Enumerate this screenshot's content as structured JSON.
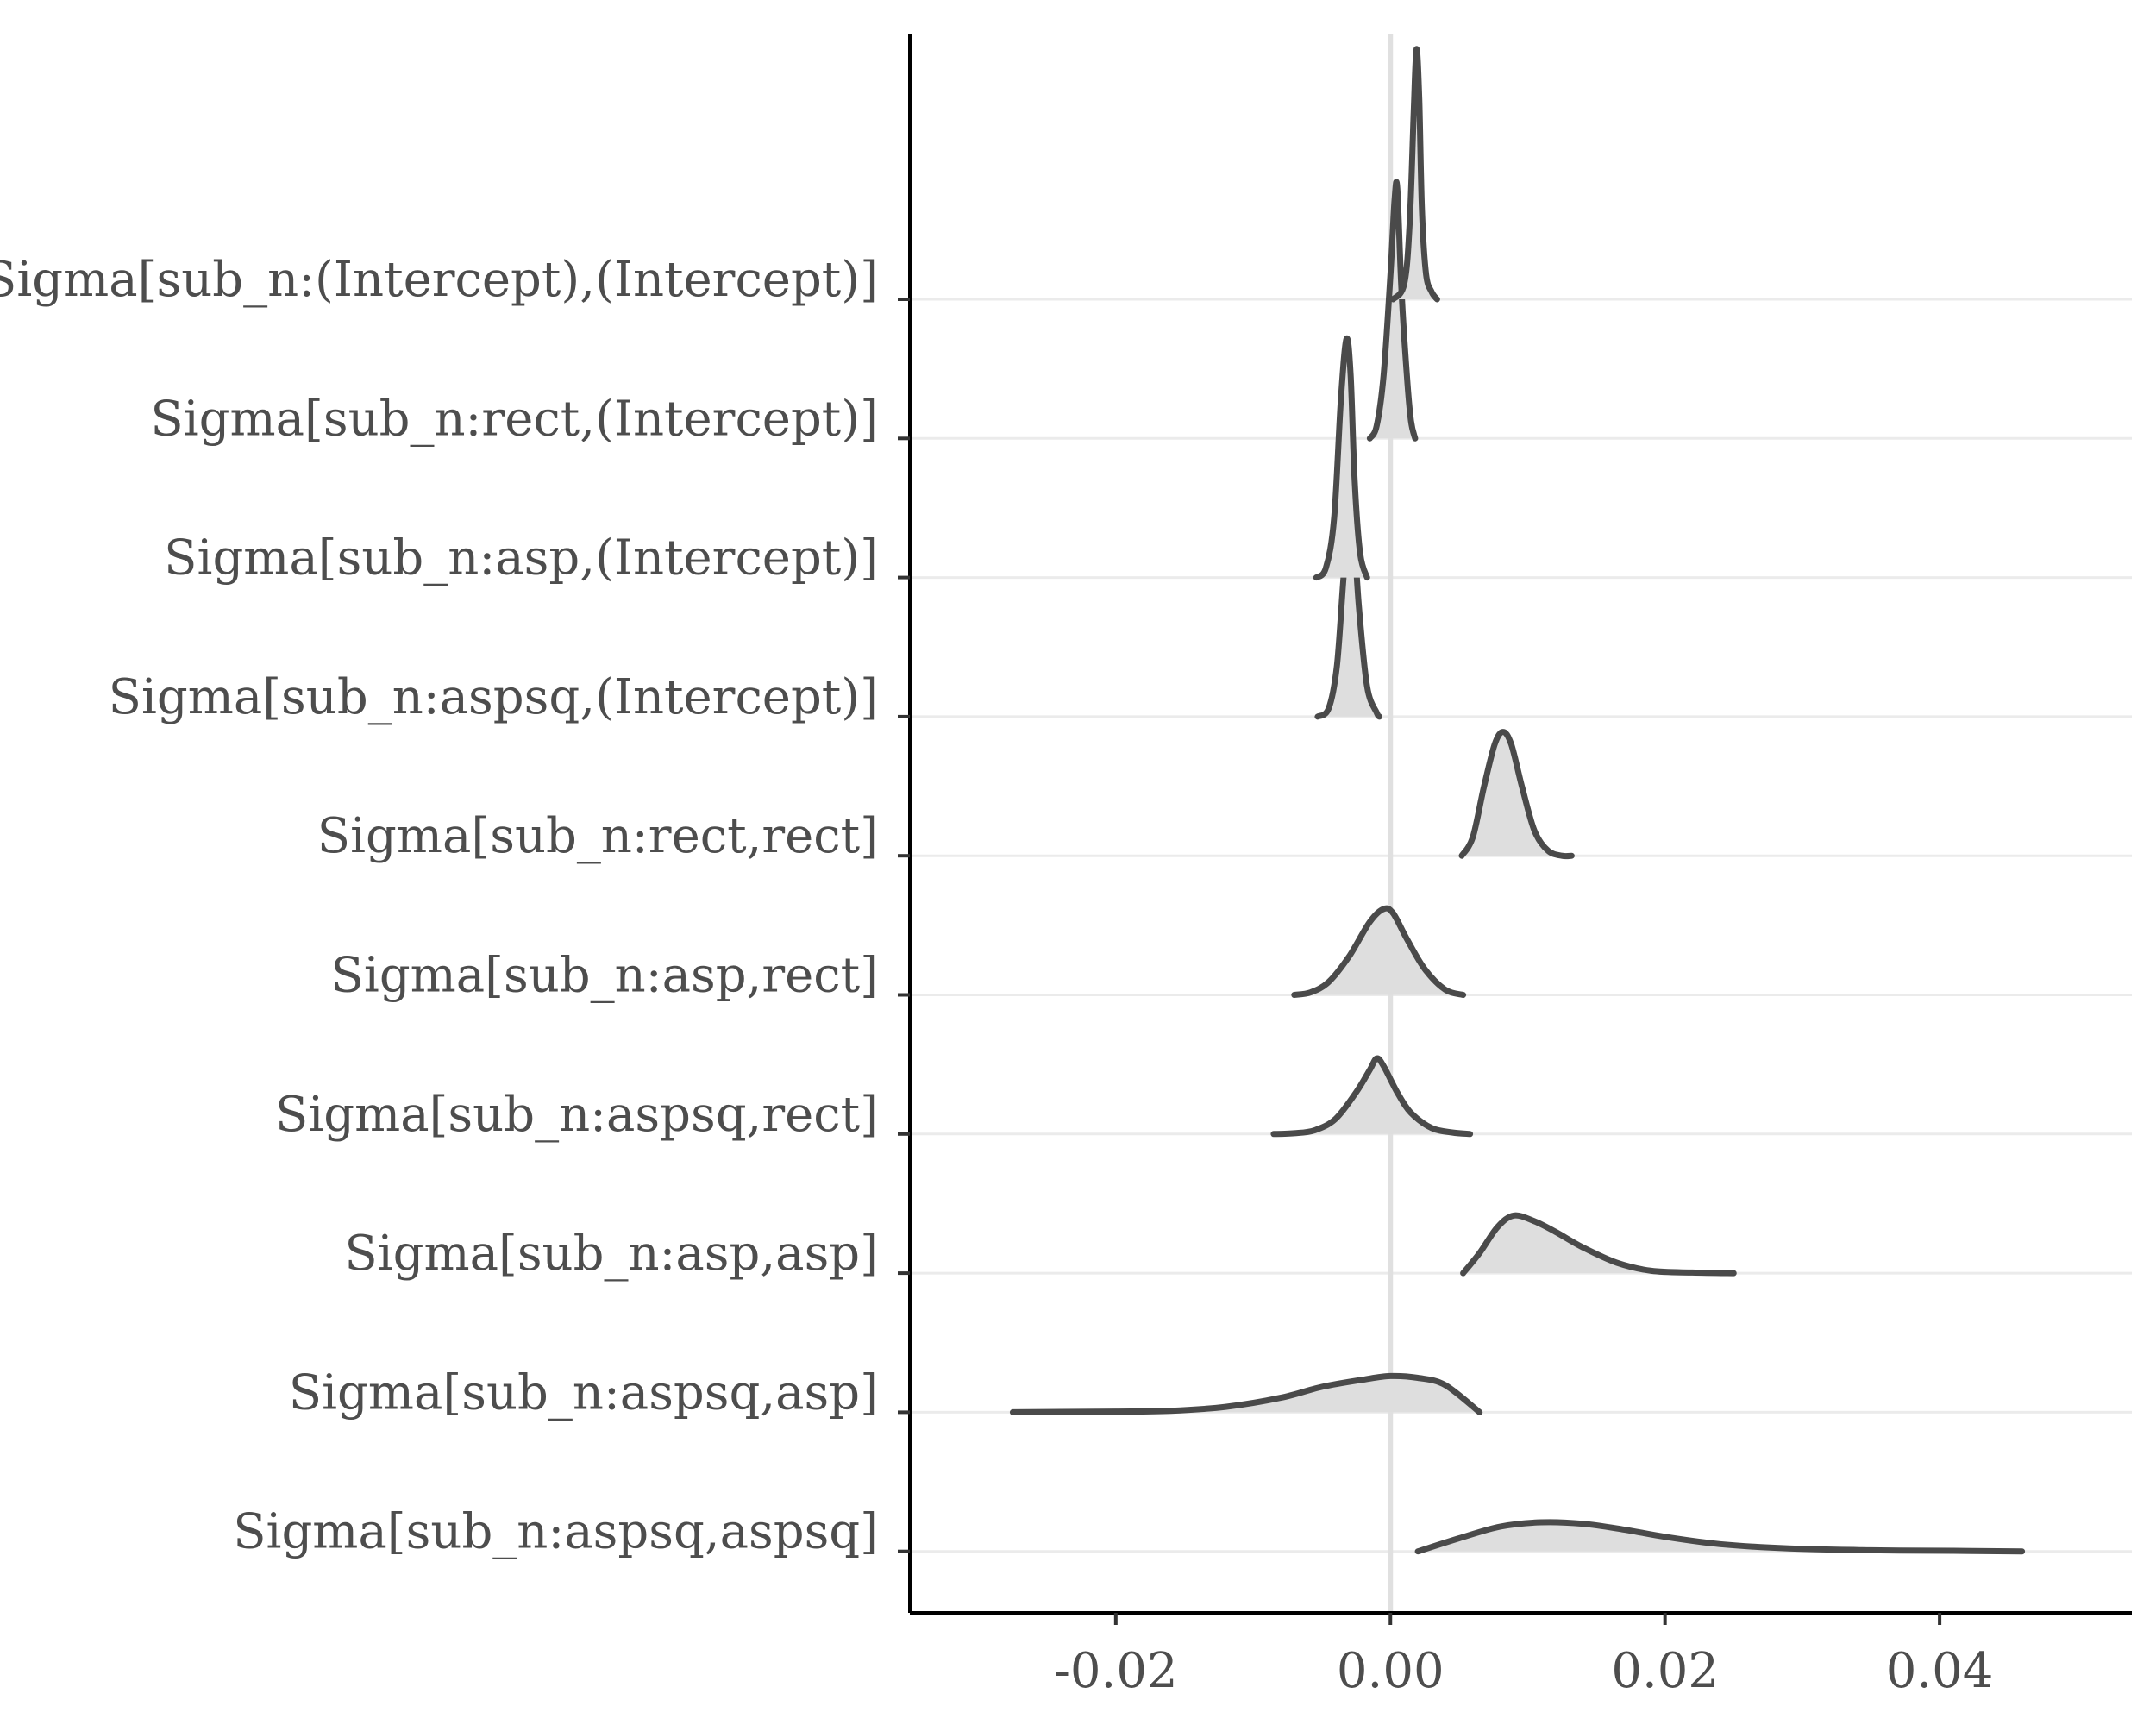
{
  "chart_data": {
    "type": "ridgeline",
    "title": "",
    "xlabel": "",
    "ylabel": "",
    "xlim": [
      -0.035,
      0.054
    ],
    "x_ticks": [
      -0.02,
      0.0,
      0.02,
      0.04
    ],
    "x_tick_labels": [
      "-0.02",
      "0.00",
      "0.02",
      "0.04"
    ],
    "reference_line_x": 0.0,
    "grid": "horizontal",
    "colors": {
      "fill": "#dedede",
      "line": "#4a4a4a",
      "reference": "#e0e0e0",
      "grid": "#ebebeb",
      "text": "#4d4d4d"
    },
    "series": [
      {
        "name": "Sigma[sub_n:(Intercept),(Intercept)]",
        "x": [
          0.0002,
          0.001,
          0.0014,
          0.0017,
          0.0019,
          0.0021,
          0.0023,
          0.0026,
          0.003,
          0.0034
        ],
        "density": [
          0.0,
          0.06,
          0.3,
          0.75,
          1.0,
          0.8,
          0.35,
          0.1,
          0.03,
          0.0
        ]
      },
      {
        "name": "Sigma[sub_n:rect,(Intercept)]",
        "x": [
          -0.0015,
          -0.001,
          -0.0005,
          0.0,
          0.0003,
          0.0005,
          0.0008,
          0.0012,
          0.0015,
          0.0018
        ],
        "density": [
          0.0,
          0.05,
          0.25,
          0.65,
          0.95,
          1.0,
          0.6,
          0.25,
          0.07,
          0.0
        ]
      },
      {
        "name": "Sigma[sub_n:asp,(Intercept)]",
        "x": [
          -0.0054,
          -0.0047,
          -0.0041,
          -0.0036,
          -0.0032,
          -0.0029,
          -0.0026,
          -0.0022,
          -0.0017
        ],
        "density": [
          0.0,
          0.04,
          0.25,
          0.75,
          1.0,
          0.85,
          0.4,
          0.1,
          0.0
        ]
      },
      {
        "name": "Sigma[sub_n:aspsq,(Intercept)]",
        "x": [
          -0.0053,
          -0.0045,
          -0.0039,
          -0.0034,
          -0.003,
          -0.0027,
          -0.0023,
          -0.0017,
          -0.001,
          -0.0008
        ],
        "density": [
          0.0,
          0.04,
          0.25,
          0.7,
          1.0,
          0.95,
          0.55,
          0.15,
          0.02,
          0.0
        ]
      },
      {
        "name": "Sigma[sub_n:rect,rect]",
        "x": [
          0.0052,
          0.006,
          0.0068,
          0.0076,
          0.0082,
          0.0088,
          0.0096,
          0.0105,
          0.0115,
          0.0125,
          0.0132
        ],
        "density": [
          0.0,
          0.15,
          0.55,
          0.9,
          1.0,
          0.9,
          0.55,
          0.2,
          0.04,
          0.0,
          0.0
        ]
      },
      {
        "name": "Sigma[sub_n:asp,rect]",
        "x": [
          -0.007,
          -0.0058,
          -0.0045,
          -0.003,
          -0.0015,
          -0.0005,
          0.0002,
          0.0012,
          0.0025,
          0.004,
          0.0053
        ],
        "density": [
          0.0,
          0.03,
          0.15,
          0.45,
          0.85,
          1.0,
          0.95,
          0.65,
          0.3,
          0.06,
          0.0
        ]
      },
      {
        "name": "Sigma[sub_n:aspsq,rect]",
        "x": [
          -0.0085,
          -0.007,
          -0.0055,
          -0.004,
          -0.0025,
          -0.0015,
          -0.001,
          -0.0005,
          0.0005,
          0.0015,
          0.003,
          0.0045,
          0.0058
        ],
        "density": [
          0.0,
          0.01,
          0.05,
          0.2,
          0.55,
          0.85,
          1.0,
          0.9,
          0.55,
          0.28,
          0.08,
          0.02,
          0.0
        ]
      },
      {
        "name": "Sigma[sub_n:asp,asp]",
        "x": [
          0.0053,
          0.0065,
          0.0078,
          0.009,
          0.0105,
          0.012,
          0.014,
          0.0165,
          0.019,
          0.022,
          0.025
        ],
        "density": [
          0.0,
          0.35,
          0.8,
          1.0,
          0.9,
          0.72,
          0.45,
          0.18,
          0.04,
          0.01,
          0.0
        ]
      },
      {
        "name": "Sigma[sub_n:aspsq,asp]",
        "x": [
          -0.0275,
          -0.024,
          -0.02,
          -0.016,
          -0.012,
          -0.008,
          -0.005,
          -0.002,
          0.0,
          0.002,
          0.004,
          0.0065
        ],
        "density": [
          0.0,
          0.01,
          0.02,
          0.04,
          0.15,
          0.4,
          0.7,
          0.9,
          1.0,
          0.95,
          0.75,
          0.0
        ]
      },
      {
        "name": "Sigma[sub_n:aspsq,aspsq]",
        "x": [
          0.002,
          0.005,
          0.008,
          0.011,
          0.014,
          0.017,
          0.02,
          0.024,
          0.029,
          0.035,
          0.041,
          0.046
        ],
        "density": [
          0.0,
          0.45,
          0.85,
          1.0,
          0.95,
          0.75,
          0.5,
          0.25,
          0.1,
          0.04,
          0.02,
          0.0
        ]
      }
    ]
  }
}
